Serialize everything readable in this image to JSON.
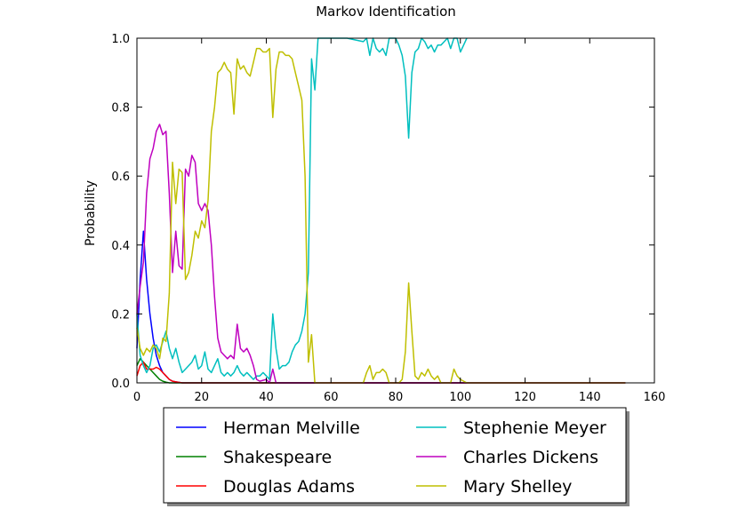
{
  "chart_data": {
    "type": "line",
    "title": "Markov Identification",
    "xlabel": "",
    "ylabel": "Probability",
    "xlim": [
      0,
      160
    ],
    "ylim": [
      0.0,
      1.0
    ],
    "xticks": [
      0,
      20,
      40,
      60,
      80,
      100,
      120,
      140,
      160
    ],
    "yticks": [
      0.0,
      0.2,
      0.4,
      0.6,
      0.8,
      1.0
    ],
    "xtick_labels": [
      "0",
      "20",
      "40",
      "60",
      "80",
      "100",
      "120",
      "140",
      "160"
    ],
    "ytick_labels": [
      "0.0",
      "0.2",
      "0.4",
      "0.6",
      "0.8",
      "1.0"
    ],
    "grid": false,
    "legend_position": "bottom, outside plot, two columns",
    "series": [
      {
        "name": "Herman Melville",
        "color": "#0000ff",
        "points": [
          [
            0,
            0.1
          ],
          [
            1,
            0.3
          ],
          [
            2,
            0.44
          ],
          [
            3,
            0.3
          ],
          [
            4,
            0.2
          ],
          [
            5,
            0.13
          ],
          [
            6,
            0.08
          ],
          [
            7,
            0.05
          ],
          [
            8,
            0.03
          ],
          [
            9,
            0.02
          ],
          [
            10,
            0.01
          ],
          [
            11,
            0.005
          ],
          [
            12,
            0.003
          ],
          [
            14,
            0
          ],
          [
            151,
            0
          ]
        ]
      },
      {
        "name": "Shakespeare",
        "color": "#008000",
        "points": [
          [
            0,
            0.05
          ],
          [
            1,
            0.07
          ],
          [
            2,
            0.06
          ],
          [
            3,
            0.05
          ],
          [
            4,
            0.04
          ],
          [
            5,
            0.03
          ],
          [
            6,
            0.02
          ],
          [
            7,
            0.01
          ],
          [
            8,
            0.005
          ],
          [
            9,
            0.002
          ],
          [
            10,
            0
          ],
          [
            151,
            0
          ]
        ]
      },
      {
        "name": "Douglas Adams",
        "color": "#ff0000",
        "points": [
          [
            0,
            0.02
          ],
          [
            1,
            0.05
          ],
          [
            2,
            0.06
          ],
          [
            3,
            0.04
          ],
          [
            4,
            0.04
          ],
          [
            5,
            0.04
          ],
          [
            6,
            0.045
          ],
          [
            7,
            0.04
          ],
          [
            8,
            0.03
          ],
          [
            9,
            0.02
          ],
          [
            10,
            0.01
          ],
          [
            11,
            0.005
          ],
          [
            12,
            0.003
          ],
          [
            14,
            0
          ],
          [
            151,
            0
          ]
        ]
      },
      {
        "name": "Stephenie Meyer",
        "color": "#00bfbf",
        "points": [
          [
            0,
            0.2
          ],
          [
            1,
            0.08
          ],
          [
            2,
            0.05
          ],
          [
            3,
            0.03
          ],
          [
            4,
            0.05
          ],
          [
            5,
            0.1
          ],
          [
            6,
            0.11
          ],
          [
            7,
            0.09
          ],
          [
            8,
            0.12
          ],
          [
            9,
            0.15
          ],
          [
            10,
            0.1
          ],
          [
            11,
            0.07
          ],
          [
            12,
            0.1
          ],
          [
            13,
            0.06
          ],
          [
            14,
            0.03
          ],
          [
            15,
            0.04
          ],
          [
            16,
            0.05
          ],
          [
            17,
            0.06
          ],
          [
            18,
            0.08
          ],
          [
            19,
            0.04
          ],
          [
            20,
            0.05
          ],
          [
            21,
            0.09
          ],
          [
            22,
            0.04
          ],
          [
            23,
            0.03
          ],
          [
            24,
            0.05
          ],
          [
            25,
            0.07
          ],
          [
            26,
            0.03
          ],
          [
            27,
            0.02
          ],
          [
            28,
            0.03
          ],
          [
            29,
            0.02
          ],
          [
            30,
            0.03
          ],
          [
            31,
            0.05
          ],
          [
            32,
            0.03
          ],
          [
            33,
            0.02
          ],
          [
            34,
            0.03
          ],
          [
            35,
            0.02
          ],
          [
            36,
            0.01
          ],
          [
            37,
            0.02
          ],
          [
            38,
            0.02
          ],
          [
            39,
            0.03
          ],
          [
            40,
            0.02
          ],
          [
            41,
            0.01
          ],
          [
            42,
            0.2
          ],
          [
            43,
            0.1
          ],
          [
            44,
            0.04
          ],
          [
            45,
            0.05
          ],
          [
            46,
            0.05
          ],
          [
            47,
            0.06
          ],
          [
            48,
            0.09
          ],
          [
            49,
            0.11
          ],
          [
            50,
            0.12
          ],
          [
            51,
            0.15
          ],
          [
            52,
            0.2
          ],
          [
            53,
            0.32
          ],
          [
            54,
            0.94
          ],
          [
            55,
            0.85
          ],
          [
            56,
            1.0
          ],
          [
            60,
            1.0
          ],
          [
            65,
            1.0
          ],
          [
            70,
            0.99
          ],
          [
            71,
            1.0
          ],
          [
            72,
            0.95
          ],
          [
            73,
            1.0
          ],
          [
            74,
            0.97
          ],
          [
            75,
            0.96
          ],
          [
            76,
            0.97
          ],
          [
            77,
            0.95
          ],
          [
            78,
            1.0
          ],
          [
            79,
            1.0
          ],
          [
            80,
            1.0
          ],
          [
            81,
            0.98
          ],
          [
            82,
            0.95
          ],
          [
            83,
            0.89
          ],
          [
            84,
            0.71
          ],
          [
            85,
            0.9
          ],
          [
            86,
            0.96
          ],
          [
            87,
            0.97
          ],
          [
            88,
            1.0
          ],
          [
            89,
            0.99
          ],
          [
            90,
            0.97
          ],
          [
            91,
            0.98
          ],
          [
            92,
            0.96
          ],
          [
            93,
            0.98
          ],
          [
            94,
            0.98
          ],
          [
            95,
            0.99
          ],
          [
            96,
            1.0
          ],
          [
            97,
            0.97
          ],
          [
            98,
            1.0
          ],
          [
            99,
            1.0
          ],
          [
            100,
            0.96
          ],
          [
            101,
            0.98
          ],
          [
            102,
            1.0
          ]
        ]
      },
      {
        "name": "Charles Dickens",
        "color": "#bf00bf",
        "points": [
          [
            0,
            0.2
          ],
          [
            1,
            0.28
          ],
          [
            2,
            0.35
          ],
          [
            3,
            0.55
          ],
          [
            4,
            0.65
          ],
          [
            5,
            0.68
          ],
          [
            6,
            0.73
          ],
          [
            7,
            0.75
          ],
          [
            8,
            0.72
          ],
          [
            9,
            0.73
          ],
          [
            10,
            0.55
          ],
          [
            11,
            0.32
          ],
          [
            12,
            0.44
          ],
          [
            13,
            0.34
          ],
          [
            14,
            0.33
          ],
          [
            15,
            0.62
          ],
          [
            16,
            0.6
          ],
          [
            17,
            0.66
          ],
          [
            18,
            0.64
          ],
          [
            19,
            0.52
          ],
          [
            20,
            0.5
          ],
          [
            21,
            0.52
          ],
          [
            22,
            0.5
          ],
          [
            23,
            0.4
          ],
          [
            24,
            0.25
          ],
          [
            25,
            0.13
          ],
          [
            26,
            0.09
          ],
          [
            27,
            0.08
          ],
          [
            28,
            0.07
          ],
          [
            29,
            0.08
          ],
          [
            30,
            0.07
          ],
          [
            31,
            0.17
          ],
          [
            32,
            0.1
          ],
          [
            33,
            0.09
          ],
          [
            34,
            0.1
          ],
          [
            35,
            0.08
          ],
          [
            36,
            0.05
          ],
          [
            37,
            0.01
          ],
          [
            38,
            0.005
          ],
          [
            40,
            0.01
          ],
          [
            41,
            0.0
          ],
          [
            42,
            0.04
          ],
          [
            43,
            0.0
          ],
          [
            151,
            0
          ]
        ]
      },
      {
        "name": "Mary Shelley",
        "color": "#bfbf00",
        "points": [
          [
            0,
            0.16
          ],
          [
            1,
            0.1
          ],
          [
            2,
            0.08
          ],
          [
            3,
            0.1
          ],
          [
            4,
            0.09
          ],
          [
            5,
            0.11
          ],
          [
            6,
            0.1
          ],
          [
            7,
            0.07
          ],
          [
            8,
            0.13
          ],
          [
            9,
            0.12
          ],
          [
            10,
            0.26
          ],
          [
            11,
            0.64
          ],
          [
            12,
            0.52
          ],
          [
            13,
            0.62
          ],
          [
            14,
            0.61
          ],
          [
            15,
            0.3
          ],
          [
            16,
            0.32
          ],
          [
            17,
            0.37
          ],
          [
            18,
            0.44
          ],
          [
            19,
            0.42
          ],
          [
            20,
            0.47
          ],
          [
            21,
            0.45
          ],
          [
            22,
            0.53
          ],
          [
            23,
            0.73
          ],
          [
            24,
            0.8
          ],
          [
            25,
            0.9
          ],
          [
            26,
            0.91
          ],
          [
            27,
            0.93
          ],
          [
            28,
            0.91
          ],
          [
            29,
            0.9
          ],
          [
            30,
            0.78
          ],
          [
            31,
            0.94
          ],
          [
            32,
            0.91
          ],
          [
            33,
            0.92
          ],
          [
            34,
            0.9
          ],
          [
            35,
            0.89
          ],
          [
            36,
            0.93
          ],
          [
            37,
            0.97
          ],
          [
            38,
            0.97
          ],
          [
            39,
            0.96
          ],
          [
            40,
            0.96
          ],
          [
            41,
            0.97
          ],
          [
            42,
            0.77
          ],
          [
            43,
            0.91
          ],
          [
            44,
            0.96
          ],
          [
            45,
            0.96
          ],
          [
            46,
            0.95
          ],
          [
            47,
            0.95
          ],
          [
            48,
            0.94
          ],
          [
            49,
            0.9
          ],
          [
            50,
            0.86
          ],
          [
            51,
            0.82
          ],
          [
            52,
            0.6
          ],
          [
            53,
            0.06
          ],
          [
            54,
            0.14
          ],
          [
            55,
            0.0
          ],
          [
            70,
            0.0
          ],
          [
            71,
            0.03
          ],
          [
            72,
            0.05
          ],
          [
            73,
            0.01
          ],
          [
            74,
            0.03
          ],
          [
            75,
            0.03
          ],
          [
            76,
            0.04
          ],
          [
            77,
            0.03
          ],
          [
            78,
            0.0
          ],
          [
            81,
            0.0
          ],
          [
            82,
            0.01
          ],
          [
            83,
            0.09
          ],
          [
            84,
            0.29
          ],
          [
            85,
            0.15
          ],
          [
            86,
            0.02
          ],
          [
            87,
            0.01
          ],
          [
            88,
            0.03
          ],
          [
            89,
            0.02
          ],
          [
            90,
            0.04
          ],
          [
            91,
            0.02
          ],
          [
            92,
            0.01
          ],
          [
            93,
            0.02
          ],
          [
            94,
            0.0
          ],
          [
            97,
            0.0
          ],
          [
            98,
            0.04
          ],
          [
            99,
            0.02
          ],
          [
            100,
            0.01
          ],
          [
            102,
            0.0
          ],
          [
            151,
            0.0
          ]
        ]
      }
    ]
  }
}
